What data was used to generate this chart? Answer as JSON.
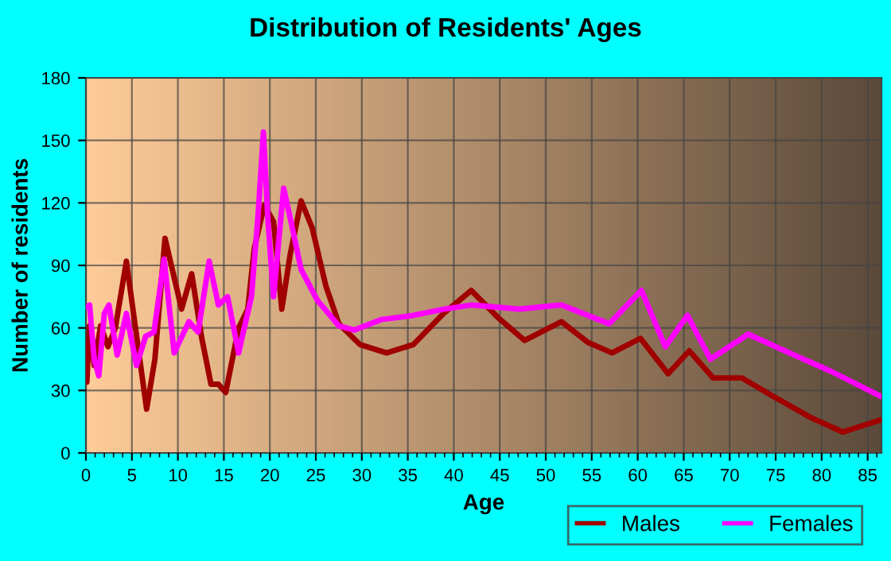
{
  "chart_data": {
    "type": "line",
    "title": "Distribution of Residents' Ages",
    "xlabel": "Age",
    "ylabel": "Number of residents",
    "xlim": [
      0,
      86.5
    ],
    "ylim": [
      0,
      180
    ],
    "xticks": [
      0,
      5,
      10,
      15,
      20,
      25,
      30,
      35,
      40,
      45,
      50,
      55,
      60,
      65,
      70,
      75,
      80,
      85
    ],
    "yticks": [
      0,
      30,
      60,
      90,
      120,
      150,
      180
    ],
    "grid": true,
    "legend": "bottom right",
    "marker": "none",
    "line_style": "solid",
    "series": [
      {
        "name": "Males",
        "color": "#a00000",
        "x": [
          0.1,
          0.4,
          0.9,
          1.6,
          2.4,
          3.2,
          4.4,
          5.7,
          6.6,
          7.5,
          8.6,
          10.4,
          11.5,
          12.6,
          13.6,
          14.4,
          15.2,
          16.6,
          17.6,
          18.3,
          19.4,
          20.4,
          21.3,
          22.2,
          23.4,
          24.6,
          26.1,
          27.5,
          29.8,
          32.7,
          35.6,
          38.9,
          41.9,
          44.8,
          47.7,
          51.7,
          54.6,
          57.2,
          60.3,
          63.3,
          65.6,
          68.2,
          71.3,
          74.8,
          78.8,
          82.3,
          86.5
        ],
        "values": [
          34,
          61,
          42,
          61,
          51,
          60,
          92,
          50,
          21,
          45,
          103,
          69,
          86,
          55,
          33,
          33,
          29,
          60,
          69,
          98,
          119,
          111,
          69,
          95,
          121,
          108,
          80,
          62,
          52,
          48,
          52,
          67,
          78,
          65,
          54,
          63,
          53,
          48,
          55,
          38,
          49,
          36,
          36,
          27,
          17,
          10,
          16
        ]
      },
      {
        "name": "Females",
        "color": "#ff00ff",
        "x": [
          0,
          0.4,
          0.9,
          1.4,
          2.0,
          2.5,
          3.4,
          4.4,
          5.5,
          6.5,
          7.4,
          8.5,
          9.6,
          11.2,
          12.2,
          13.4,
          14.4,
          15.4,
          16.6,
          18.0,
          18.7,
          19.3,
          19.8,
          20.4,
          21.5,
          22.3,
          23.4,
          25.2,
          27.5,
          29.2,
          32.1,
          35.6,
          38.9,
          41.9,
          47.1,
          51.7,
          54.6,
          56.9,
          60.4,
          63.0,
          65.4,
          67.9,
          72.0,
          76.5,
          81.1,
          86.5
        ],
        "values": [
          70,
          71,
          45,
          37,
          67,
          71,
          47,
          67,
          42,
          56,
          58,
          93,
          48,
          63,
          58,
          92,
          71,
          75,
          48,
          75,
          113,
          154,
          111,
          75,
          127,
          111,
          88,
          73,
          61,
          59,
          64,
          66,
          69,
          71,
          69,
          71,
          66,
          62,
          78,
          51,
          66,
          45,
          57,
          48,
          39,
          27
        ]
      }
    ]
  }
}
